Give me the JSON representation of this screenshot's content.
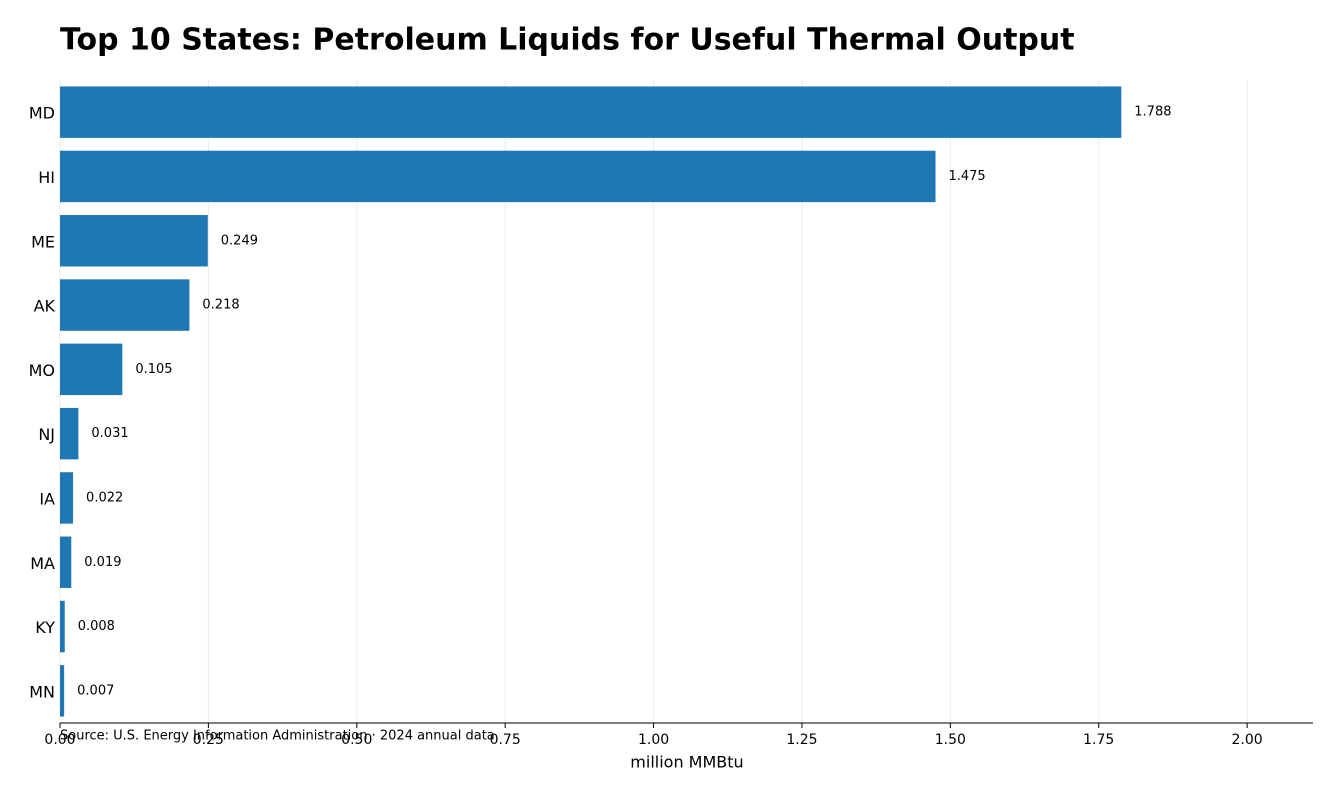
{
  "chart_data": {
    "type": "bar",
    "orientation": "horizontal",
    "title": "Top 10 States: Petroleum Liquids for Useful Thermal Output",
    "categories": [
      "MD",
      "HI",
      "ME",
      "AK",
      "MO",
      "NJ",
      "IA",
      "MA",
      "KY",
      "MN"
    ],
    "values": [
      1.788,
      1.475,
      0.249,
      0.218,
      0.105,
      0.031,
      0.022,
      0.019,
      0.008,
      0.007
    ],
    "color": "#1f77b4",
    "xlabel": "million MMBtu",
    "xlim": [
      0,
      2.111
    ],
    "xticks": [
      {
        "value": 0,
        "label": "0.00"
      },
      0.25,
      {
        "value": 0.5,
        "label": "0.50"
      },
      0.75,
      {
        "value": 1,
        "label": "1.00"
      },
      1.25,
      {
        "value": 1.5,
        "label": "1.50"
      },
      1.75,
      {
        "value": 2,
        "label": "2.00"
      }
    ],
    "grid": true,
    "source": "Source: U.S. Energy Information Administration · 2024 annual data"
  }
}
